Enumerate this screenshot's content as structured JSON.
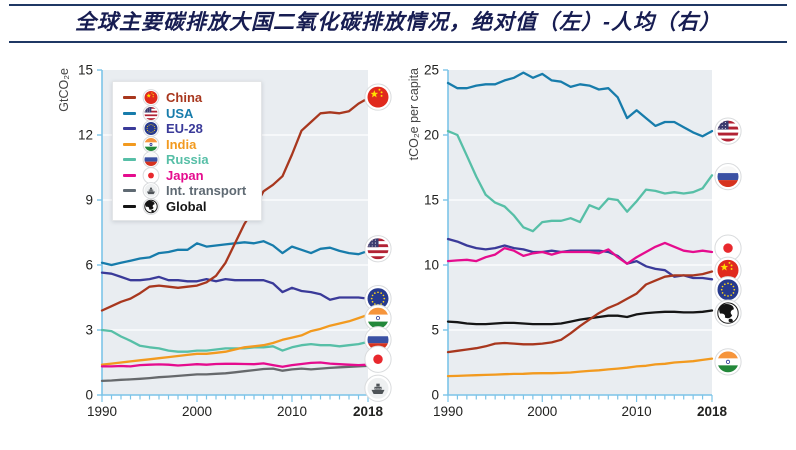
{
  "header": {
    "title": "全球主要碳排放大国二氧化碳排放情况，绝对值（左）-人均（右）"
  },
  "style": {
    "title_color": "#171d52",
    "rule_color": "#1f3864",
    "plot_bg": "#e9edf1",
    "axis_color": "#7cc4e8",
    "grid_color": "#ffffff",
    "tick_label_color": "#222220",
    "unit_label_color": "#444444",
    "legend_bg": "#ffffff",
    "legend_border": "#e3e5e7"
  },
  "legend": {
    "items": [
      {
        "id": "china",
        "label": "China",
        "color": "#a8371e",
        "flag": "china"
      },
      {
        "id": "usa",
        "label": "USA",
        "color": "#177cab",
        "flag": "usa"
      },
      {
        "id": "eu28",
        "label": "EU-28",
        "color": "#3a3a99",
        "flag": "eu28"
      },
      {
        "id": "india",
        "label": "India",
        "color": "#f29a1f",
        "flag": "india"
      },
      {
        "id": "russia",
        "label": "Russia",
        "color": "#57bfa7",
        "flag": "russia"
      },
      {
        "id": "japan",
        "label": "Japan",
        "color": "#e50c8e",
        "flag": "japan"
      },
      {
        "id": "int_transport",
        "label": "Int. transport",
        "color": "#5f6a73",
        "flag": "int_transport"
      },
      {
        "id": "global",
        "label": "Global",
        "color": "#151515",
        "flag": "global"
      }
    ]
  },
  "chart_data": [
    {
      "id": "absolute",
      "type": "line",
      "title": "",
      "ylabel": "GtCO₂e",
      "x": [
        1990,
        1991,
        1992,
        1993,
        1994,
        1995,
        1996,
        1997,
        1998,
        1999,
        2000,
        2001,
        2002,
        2003,
        2004,
        2005,
        2006,
        2007,
        2008,
        2009,
        2010,
        2011,
        2012,
        2013,
        2014,
        2015,
        2016,
        2017,
        2018
      ],
      "xticks": [
        1990,
        2000,
        2010,
        2018
      ],
      "bold_xtick": 2018,
      "ylim": [
        0,
        15
      ],
      "yticks": [
        0,
        3,
        6,
        9,
        12,
        15
      ],
      "grid": true,
      "legend_position": "upper-left-inside",
      "series": [
        {
          "id": "int_transport",
          "name": "Int. transport",
          "color": "#66696c",
          "values": [
            0.65,
            0.67,
            0.7,
            0.72,
            0.75,
            0.78,
            0.82,
            0.85,
            0.88,
            0.92,
            0.95,
            0.95,
            0.98,
            1.0,
            1.05,
            1.1,
            1.15,
            1.2,
            1.22,
            1.12,
            1.18,
            1.22,
            1.18,
            1.22,
            1.25,
            1.28,
            1.3,
            1.32,
            1.35
          ]
        },
        {
          "id": "russia",
          "name": "Russia",
          "color": "#57bfa7",
          "values": [
            3.0,
            2.95,
            2.7,
            2.5,
            2.27,
            2.2,
            2.15,
            2.05,
            2.0,
            2.0,
            2.05,
            2.05,
            2.1,
            2.15,
            2.15,
            2.15,
            2.2,
            2.2,
            2.25,
            2.05,
            2.2,
            2.3,
            2.35,
            2.3,
            2.3,
            2.25,
            2.3,
            2.35,
            2.45
          ]
        },
        {
          "id": "eu28",
          "name": "EU-28",
          "color": "#3a3a99",
          "values": [
            5.65,
            5.6,
            5.45,
            5.3,
            5.3,
            5.35,
            5.45,
            5.3,
            5.3,
            5.25,
            5.25,
            5.35,
            5.25,
            5.35,
            5.3,
            5.3,
            5.3,
            5.3,
            5.15,
            4.75,
            4.95,
            4.8,
            4.75,
            4.65,
            4.4,
            4.5,
            4.5,
            4.5,
            4.45
          ]
        },
        {
          "id": "usa",
          "name": "USA",
          "color": "#177cab",
          "values": [
            6.1,
            6.0,
            6.1,
            6.2,
            6.3,
            6.35,
            6.55,
            6.6,
            6.7,
            6.7,
            7.0,
            6.85,
            6.9,
            6.95,
            7.0,
            7.05,
            7.0,
            7.1,
            6.9,
            6.55,
            6.85,
            6.7,
            6.55,
            6.75,
            6.8,
            6.65,
            6.55,
            6.5,
            6.65
          ]
        },
        {
          "id": "india",
          "name": "India",
          "color": "#f29a1f",
          "values": [
            1.4,
            1.45,
            1.5,
            1.55,
            1.6,
            1.65,
            1.7,
            1.75,
            1.8,
            1.85,
            1.9,
            1.9,
            1.95,
            2.0,
            2.1,
            2.2,
            2.25,
            2.3,
            2.4,
            2.55,
            2.65,
            2.75,
            2.95,
            3.05,
            3.2,
            3.3,
            3.4,
            3.55,
            3.7
          ]
        },
        {
          "id": "japan",
          "name": "Japan",
          "color": "#e50c8e",
          "values": [
            1.32,
            1.32,
            1.34,
            1.32,
            1.38,
            1.4,
            1.41,
            1.4,
            1.36,
            1.39,
            1.42,
            1.4,
            1.43,
            1.44,
            1.44,
            1.43,
            1.42,
            1.46,
            1.38,
            1.3,
            1.38,
            1.43,
            1.48,
            1.5,
            1.45,
            1.42,
            1.4,
            1.38,
            1.4
          ]
        },
        {
          "id": "china",
          "name": "China",
          "color": "#a8371e",
          "values": [
            3.9,
            4.1,
            4.3,
            4.45,
            4.7,
            5.0,
            5.05,
            5.0,
            4.95,
            5.0,
            5.05,
            5.2,
            5.5,
            6.1,
            7.0,
            7.9,
            8.6,
            9.4,
            9.7,
            10.1,
            11.1,
            12.2,
            12.6,
            13.0,
            13.05,
            13.0,
            13.1,
            13.45,
            13.7
          ]
        }
      ],
      "end_markers": [
        {
          "flag": "china",
          "value": 13.75
        },
        {
          "flag": "usa",
          "value": 6.75
        },
        {
          "flag": "eu28",
          "value": 4.45
        },
        {
          "flag": "india",
          "value": 3.55
        },
        {
          "flag": "russia",
          "value": 2.55
        },
        {
          "flag": "japan",
          "value": 1.65
        },
        {
          "flag": "int_transport",
          "value": 0.31
        }
      ]
    },
    {
      "id": "per_capita",
      "type": "line",
      "title": "",
      "ylabel": "tCO₂e per capita",
      "x": [
        1990,
        1991,
        1992,
        1993,
        1994,
        1995,
        1996,
        1997,
        1998,
        1999,
        2000,
        2001,
        2002,
        2003,
        2004,
        2005,
        2006,
        2007,
        2008,
        2009,
        2010,
        2011,
        2012,
        2013,
        2014,
        2015,
        2016,
        2017,
        2018
      ],
      "xticks": [
        1990,
        2000,
        2010,
        2018
      ],
      "bold_xtick": 2018,
      "ylim": [
        0,
        25
      ],
      "yticks": [
        0,
        5,
        10,
        15,
        20,
        25
      ],
      "grid": true,
      "series": [
        {
          "id": "global",
          "name": "Global",
          "color": "#151515",
          "values": [
            5.65,
            5.6,
            5.5,
            5.45,
            5.45,
            5.5,
            5.55,
            5.55,
            5.5,
            5.45,
            5.45,
            5.45,
            5.5,
            5.65,
            5.8,
            5.9,
            6.0,
            6.1,
            6.1,
            6.0,
            6.2,
            6.3,
            6.35,
            6.4,
            6.4,
            6.35,
            6.35,
            6.4,
            6.5
          ]
        },
        {
          "id": "russia",
          "name": "Russia",
          "color": "#57bfa7",
          "values": [
            20.3,
            20.0,
            18.4,
            16.8,
            15.4,
            14.8,
            14.5,
            13.8,
            12.9,
            12.6,
            13.3,
            13.4,
            13.4,
            13.6,
            13.3,
            14.6,
            14.3,
            15.1,
            15.0,
            14.1,
            14.9,
            15.8,
            15.7,
            15.5,
            15.6,
            15.5,
            15.6,
            15.9,
            16.9
          ]
        },
        {
          "id": "usa",
          "name": "USA",
          "color": "#177cab",
          "values": [
            24.0,
            23.6,
            23.6,
            23.8,
            23.9,
            23.9,
            24.2,
            24.4,
            24.8,
            24.4,
            24.7,
            24.2,
            24.1,
            23.7,
            23.9,
            23.8,
            23.5,
            23.6,
            22.9,
            21.3,
            21.9,
            21.3,
            20.7,
            21.0,
            21.0,
            20.6,
            20.2,
            19.9,
            20.3
          ]
        },
        {
          "id": "eu28",
          "name": "EU-28",
          "color": "#3a3a99",
          "values": [
            12.0,
            11.8,
            11.5,
            11.3,
            11.2,
            11.3,
            11.5,
            11.3,
            11.2,
            11.0,
            11.0,
            11.1,
            11.0,
            11.1,
            11.1,
            11.1,
            11.1,
            11.0,
            10.7,
            10.1,
            10.3,
            9.9,
            9.7,
            9.6,
            9.1,
            9.2,
            9.0,
            9.0,
            8.9
          ]
        },
        {
          "id": "india",
          "name": "India",
          "color": "#f29a1f",
          "values": [
            1.45,
            1.47,
            1.5,
            1.52,
            1.55,
            1.57,
            1.6,
            1.62,
            1.63,
            1.67,
            1.68,
            1.68,
            1.7,
            1.73,
            1.8,
            1.85,
            1.9,
            1.97,
            2.03,
            2.1,
            2.2,
            2.25,
            2.35,
            2.4,
            2.5,
            2.55,
            2.6,
            2.7,
            2.8
          ]
        },
        {
          "id": "japan",
          "name": "Japan",
          "color": "#e50c8e",
          "values": [
            10.3,
            10.35,
            10.4,
            10.3,
            10.6,
            10.8,
            11.3,
            11.1,
            10.7,
            10.9,
            11.0,
            10.8,
            11.0,
            11.0,
            11.0,
            11.0,
            10.9,
            11.2,
            10.6,
            10.1,
            10.6,
            11.0,
            11.4,
            11.7,
            11.4,
            11.1,
            11.0,
            11.1,
            11.0
          ]
        },
        {
          "id": "china",
          "name": "China",
          "color": "#a8371e",
          "values": [
            3.3,
            3.4,
            3.5,
            3.6,
            3.75,
            3.95,
            4.0,
            3.95,
            3.9,
            3.9,
            3.95,
            4.05,
            4.25,
            4.75,
            5.3,
            5.8,
            6.3,
            6.7,
            7.0,
            7.4,
            7.8,
            8.5,
            8.8,
            9.1,
            9.2,
            9.2,
            9.2,
            9.3,
            9.5
          ]
        }
      ],
      "end_markers": [
        {
          "flag": "usa",
          "value": 20.3
        },
        {
          "flag": "russia",
          "value": 16.8
        },
        {
          "flag": "japan",
          "value": 11.3
        },
        {
          "flag": "china",
          "value": 9.6
        },
        {
          "flag": "eu28",
          "value": 8.1
        },
        {
          "flag": "global",
          "value": 6.3
        },
        {
          "flag": "india",
          "value": 2.55
        }
      ]
    }
  ]
}
